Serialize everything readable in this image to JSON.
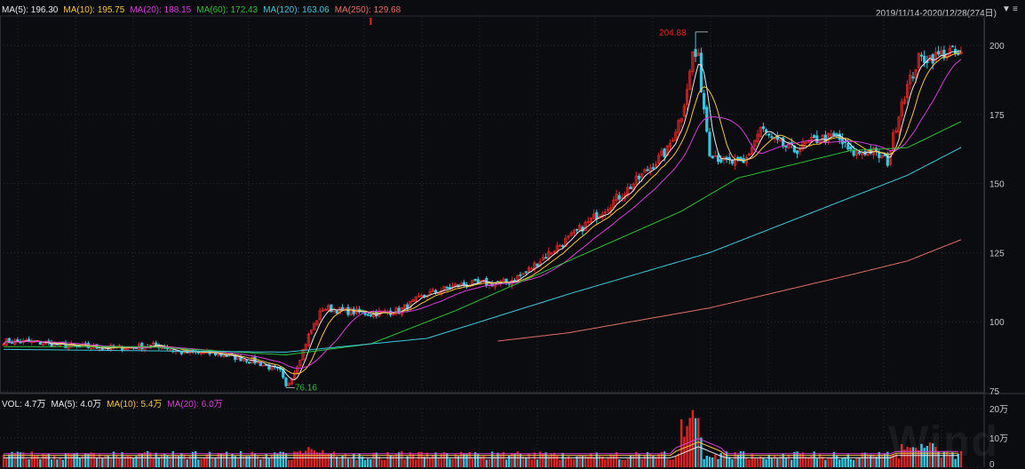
{
  "legend_price": [
    {
      "label": "MA(5): 196.30",
      "color": "#e8e8e8"
    },
    {
      "label": "MA(10): 195.75",
      "color": "#f5c542"
    },
    {
      "label": "MA(20): 188.15",
      "color": "#d43fd6"
    },
    {
      "label": "MA(60): 172.43",
      "color": "#2fbf3a"
    },
    {
      "label": "MA(120): 163.06",
      "color": "#3fc6d8"
    },
    {
      "label": "MA(250): 129.68",
      "color": "#e0706a"
    }
  ],
  "legend_volume": [
    {
      "label": "VOL: 4.7万",
      "color": "#e8e8e8"
    },
    {
      "label": "MA(5): 4.0万",
      "color": "#e8e8e8"
    },
    {
      "label": "MA(10): 5.4万",
      "color": "#f5c542"
    },
    {
      "label": "MA(20): 6.0万",
      "color": "#d43fd6"
    }
  ],
  "date_range": "2019/11/14-2020/12/28(274日)",
  "watermark": "Wind",
  "chart_data": [
    {
      "type": "candlestick",
      "ylim": [
        75,
        210
      ],
      "yticks": [
        75,
        100,
        125,
        150,
        175,
        200
      ],
      "ytick_labels": [
        "75",
        "100",
        "125",
        "150",
        "175",
        "200"
      ],
      "annotations": [
        {
          "label": "204.88",
          "value": 204.88,
          "kind": "high"
        },
        {
          "label": "76.16",
          "value": 76.16,
          "kind": "low"
        }
      ],
      "series": [
        {
          "name": "MA(5)",
          "color": "#e8e8e8"
        },
        {
          "name": "MA(10)",
          "color": "#f5c542"
        },
        {
          "name": "MA(20)",
          "color": "#d43fd6"
        },
        {
          "name": "MA(60)",
          "color": "#2fbf3a"
        },
        {
          "name": "MA(120)",
          "color": "#3fc6d8"
        },
        {
          "name": "MA(250)",
          "color": "#e0706a"
        }
      ],
      "price_keypoints": [
        [
          0,
          93
        ],
        [
          12,
          92.5
        ],
        [
          25,
          91
        ],
        [
          40,
          90.5
        ],
        [
          55,
          91.5
        ],
        [
          62,
          89
        ],
        [
          75,
          88.5
        ],
        [
          88,
          86
        ],
        [
          98,
          82
        ],
        [
          100,
          76.16
        ],
        [
          103,
          82
        ],
        [
          108,
          95
        ],
        [
          113,
          105
        ],
        [
          120,
          104
        ],
        [
          130,
          103
        ],
        [
          140,
          104
        ],
        [
          150,
          110
        ],
        [
          160,
          113
        ],
        [
          170,
          114
        ],
        [
          178,
          114
        ],
        [
          185,
          118
        ],
        [
          192,
          124
        ],
        [
          200,
          130
        ],
        [
          207,
          136
        ],
        [
          214,
          142
        ],
        [
          221,
          148
        ],
        [
          228,
          155
        ],
        [
          235,
          162
        ],
        [
          240,
          175
        ],
        [
          243,
          190
        ],
        [
          245,
          204.88
        ],
        [
          247,
          185
        ],
        [
          250,
          162
        ],
        [
          255,
          158
        ],
        [
          262,
          157
        ],
        [
          268,
          170
        ],
        [
          273,
          165
        ],
        [
          280,
          162
        ],
        [
          288,
          166
        ],
        [
          295,
          167
        ],
        [
          300,
          161
        ],
        [
          307,
          162
        ],
        [
          313,
          158
        ],
        [
          318,
          180
        ],
        [
          324,
          195
        ],
        [
          330,
          196
        ],
        [
          335,
          198
        ],
        [
          338,
          196.3
        ]
      ],
      "ma_lines": {
        "MA(60)": [
          [
            0,
            91
          ],
          [
            50,
            91
          ],
          [
            100,
            88
          ],
          [
            130,
            92
          ],
          [
            160,
            104
          ],
          [
            200,
            122
          ],
          [
            240,
            140
          ],
          [
            260,
            152
          ],
          [
            300,
            162
          ],
          [
            320,
            163
          ],
          [
            339,
            172.43
          ]
        ],
        "MA(120)": [
          [
            0,
            90
          ],
          [
            100,
            89
          ],
          [
            150,
            94
          ],
          [
            200,
            110
          ],
          [
            250,
            125
          ],
          [
            300,
            145
          ],
          [
            320,
            153
          ],
          [
            339,
            163.06
          ]
        ],
        "MA(250)": [
          [
            175,
            93
          ],
          [
            200,
            96
          ],
          [
            250,
            105
          ],
          [
            300,
            117
          ],
          [
            320,
            122
          ],
          [
            339,
            129.68
          ]
        ]
      }
    },
    {
      "type": "bar",
      "ylim": [
        0,
        20
      ],
      "yticks": [
        0,
        10,
        20
      ],
      "ytick_labels": [
        "0",
        "10万",
        "20万"
      ],
      "series": [
        {
          "name": "MA(5)",
          "color": "#e8e8e8"
        },
        {
          "name": "MA(10)",
          "color": "#f5c542"
        },
        {
          "name": "MA(20)",
          "color": "#d43fd6"
        }
      ]
    }
  ]
}
